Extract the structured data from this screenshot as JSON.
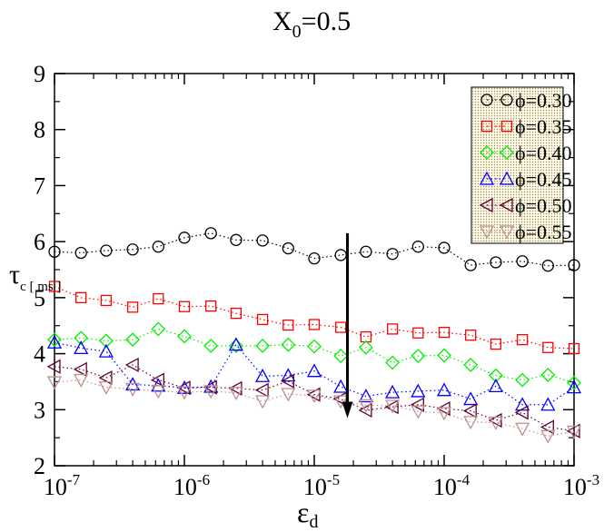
{
  "chart_data": {
    "type": "scatter",
    "title_main": "X",
    "title_sub": "0",
    "title_rest": "=0.5",
    "xlabel_main": "ε",
    "xlabel_sub": "d",
    "ylabel_main": "τ",
    "ylabel_sub": "c [ ms ]",
    "xscale": "log",
    "xlim_exp": [
      -7,
      -3
    ],
    "ylim": [
      2,
      9
    ],
    "x_tick_exponents": [
      "-7",
      "-6",
      "-5",
      "-4",
      "-3"
    ],
    "x_tick_base": "10",
    "y_ticks": [
      "2",
      "3",
      "4",
      "5",
      "6",
      "7",
      "8",
      "9"
    ],
    "legend_position": "top-right",
    "annotation": "downward arrow near x=1.8e-5 from y≈6.15 to y≈2.85 indicating increasing φ",
    "x": [
      1e-07,
      1.6e-07,
      2.5e-07,
      4e-07,
      6.3e-07,
      1e-06,
      1.6e-06,
      2.5e-06,
      4e-06,
      6.3e-06,
      1e-05,
      1.6e-05,
      2.5e-05,
      4e-05,
      6.3e-05,
      0.0001,
      0.00016,
      0.00025,
      0.0004,
      0.00063,
      0.001
    ],
    "series": [
      {
        "name": "ϕ=0.30",
        "marker": "circle",
        "color": "#000000",
        "values": [
          5.82,
          5.8,
          5.84,
          5.86,
          5.91,
          6.07,
          6.15,
          6.03,
          6.02,
          5.88,
          5.7,
          5.76,
          5.82,
          5.78,
          5.91,
          5.89,
          5.58,
          5.63,
          5.65,
          5.57,
          5.58
        ]
      },
      {
        "name": "ϕ=0.35",
        "marker": "square",
        "color": "#ff0000",
        "values": [
          5.2,
          5.0,
          4.95,
          4.83,
          4.98,
          4.84,
          4.85,
          4.72,
          4.61,
          4.51,
          4.52,
          4.47,
          4.3,
          4.44,
          4.37,
          4.38,
          4.33,
          4.17,
          4.25,
          4.11,
          4.09
        ]
      },
      {
        "name": "ϕ=0.40",
        "marker": "diamond",
        "color": "#00ee00",
        "values": [
          4.25,
          4.28,
          4.23,
          4.25,
          4.44,
          4.31,
          4.14,
          4.14,
          4.14,
          4.16,
          4.13,
          3.96,
          4.11,
          3.84,
          3.96,
          3.97,
          3.8,
          3.61,
          3.53,
          3.62,
          3.48
        ]
      },
      {
        "name": "ϕ=0.45",
        "marker": "triangle-up",
        "color": "#0000ff",
        "values": [
          4.2,
          4.1,
          4.04,
          3.45,
          3.43,
          3.39,
          3.41,
          4.16,
          3.6,
          3.61,
          3.69,
          3.41,
          3.24,
          3.31,
          3.33,
          3.35,
          3.19,
          3.42,
          3.09,
          3.09,
          3.4
        ]
      },
      {
        "name": "ϕ=0.50",
        "marker": "triangle-left",
        "color": "#600030",
        "values": [
          3.77,
          3.72,
          3.57,
          3.8,
          3.53,
          3.39,
          3.4,
          3.38,
          3.35,
          3.51,
          3.27,
          3.19,
          2.99,
          3.05,
          3.09,
          3.02,
          2.98,
          2.81,
          2.95,
          2.69,
          2.62
        ]
      },
      {
        "name": "ϕ=0.55",
        "marker": "triangle-down",
        "color": "#c09090",
        "values": [
          3.49,
          3.53,
          3.4,
          3.37,
          3.33,
          3.31,
          3.33,
          3.3,
          3.15,
          3.28,
          3.25,
          3.15,
          3.08,
          3.07,
          2.97,
          2.94,
          2.78,
          2.77,
          2.66,
          2.53,
          2.61
        ]
      }
    ]
  }
}
